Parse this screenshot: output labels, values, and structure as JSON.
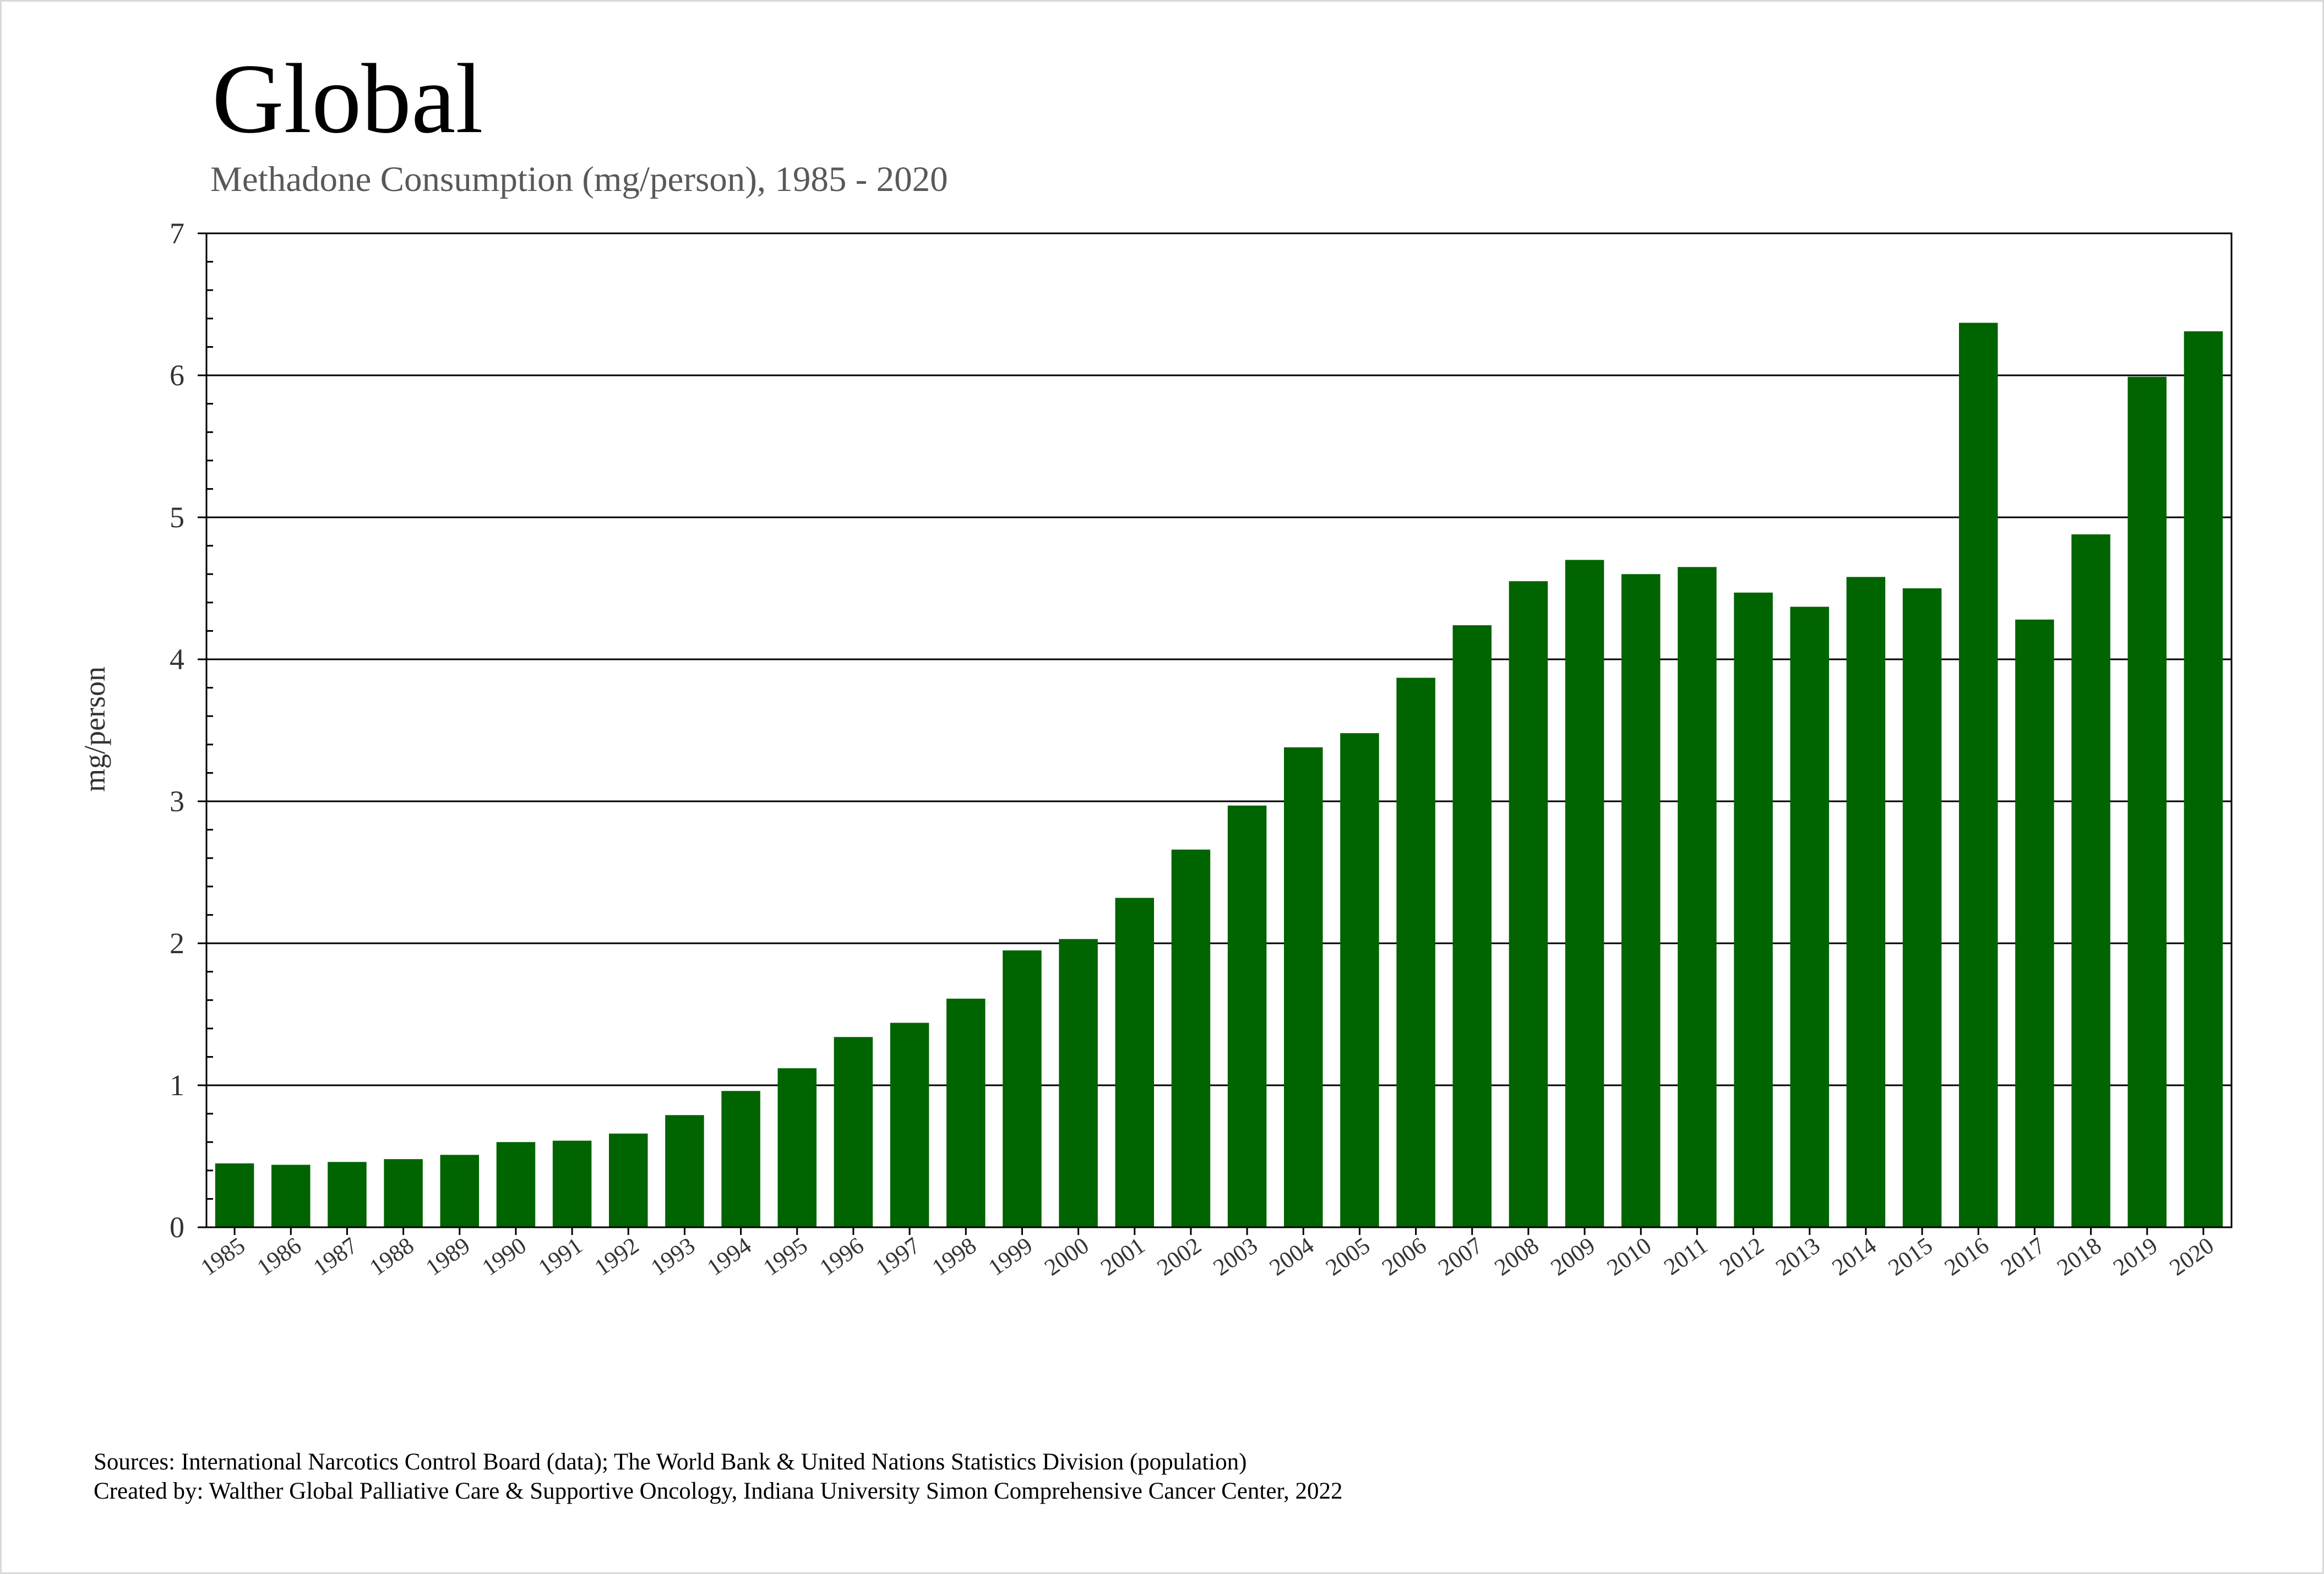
{
  "chart_data": {
    "type": "bar",
    "title": "Global",
    "subtitle": "Methadone Consumption (mg/person), 1985 - 2020",
    "xlabel": "",
    "ylabel": "mg/person",
    "ylim": [
      0,
      7
    ],
    "yticks": [
      "0",
      "1",
      "2",
      "3",
      "4",
      "5",
      "6",
      "7"
    ],
    "grid": true,
    "categories": [
      "1985",
      "1986",
      "1987",
      "1988",
      "1989",
      "1990",
      "1991",
      "1992",
      "1993",
      "1994",
      "1995",
      "1996",
      "1997",
      "1998",
      "1999",
      "2000",
      "2001",
      "2002",
      "2003",
      "2004",
      "2005",
      "2006",
      "2007",
      "2008",
      "2009",
      "2010",
      "2011",
      "2012",
      "2013",
      "2014",
      "2015",
      "2016",
      "2017",
      "2018",
      "2019",
      "2020"
    ],
    "values": [
      0.45,
      0.44,
      0.46,
      0.48,
      0.51,
      0.6,
      0.61,
      0.66,
      0.79,
      0.96,
      1.12,
      1.34,
      1.44,
      1.61,
      1.95,
      2.03,
      2.32,
      2.66,
      2.97,
      3.38,
      3.48,
      3.87,
      4.24,
      4.55,
      4.7,
      4.6,
      4.65,
      4.47,
      4.37,
      4.58,
      4.5,
      6.37,
      4.28,
      4.88,
      5.99,
      6.31
    ],
    "bar_color": "#006400"
  },
  "footer": {
    "sources": "Sources: International Narcotics Control Board (data); The World Bank & United Nations Statistics Division (population)",
    "created_by": "Created by: Walther Global Palliative Care & Supportive Oncology, Indiana University Simon Comprehensive Cancer Center, 2022"
  }
}
